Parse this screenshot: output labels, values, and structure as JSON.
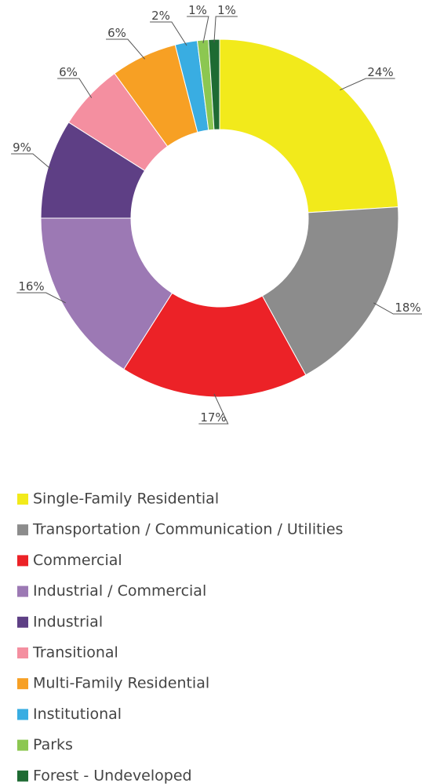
{
  "chart_data": {
    "type": "donut",
    "categories": [
      "Single-Family Residential",
      "Transportation / Communication / Utilities",
      "Commercial",
      "Industrial / Commercial",
      "Industrial",
      "Transitional",
      "Multi-Family Residential",
      "Institutional",
      "Parks",
      "Forest - Undeveloped"
    ],
    "values": [
      24,
      18,
      17,
      16,
      9,
      6,
      6,
      2,
      1,
      1
    ],
    "value_labels": [
      "24%",
      "18%",
      "17%",
      "16%",
      "9%",
      "6%",
      "6%",
      "2%",
      "1%",
      "1%"
    ],
    "colors": [
      "#f2ea1b",
      "#8c8c8c",
      "#ec2227",
      "#9c79b4",
      "#5e3f85",
      "#f48fa0",
      "#f7a024",
      "#39ade2",
      "#8cc751",
      "#1e6b33"
    ],
    "legend": "bottom"
  }
}
